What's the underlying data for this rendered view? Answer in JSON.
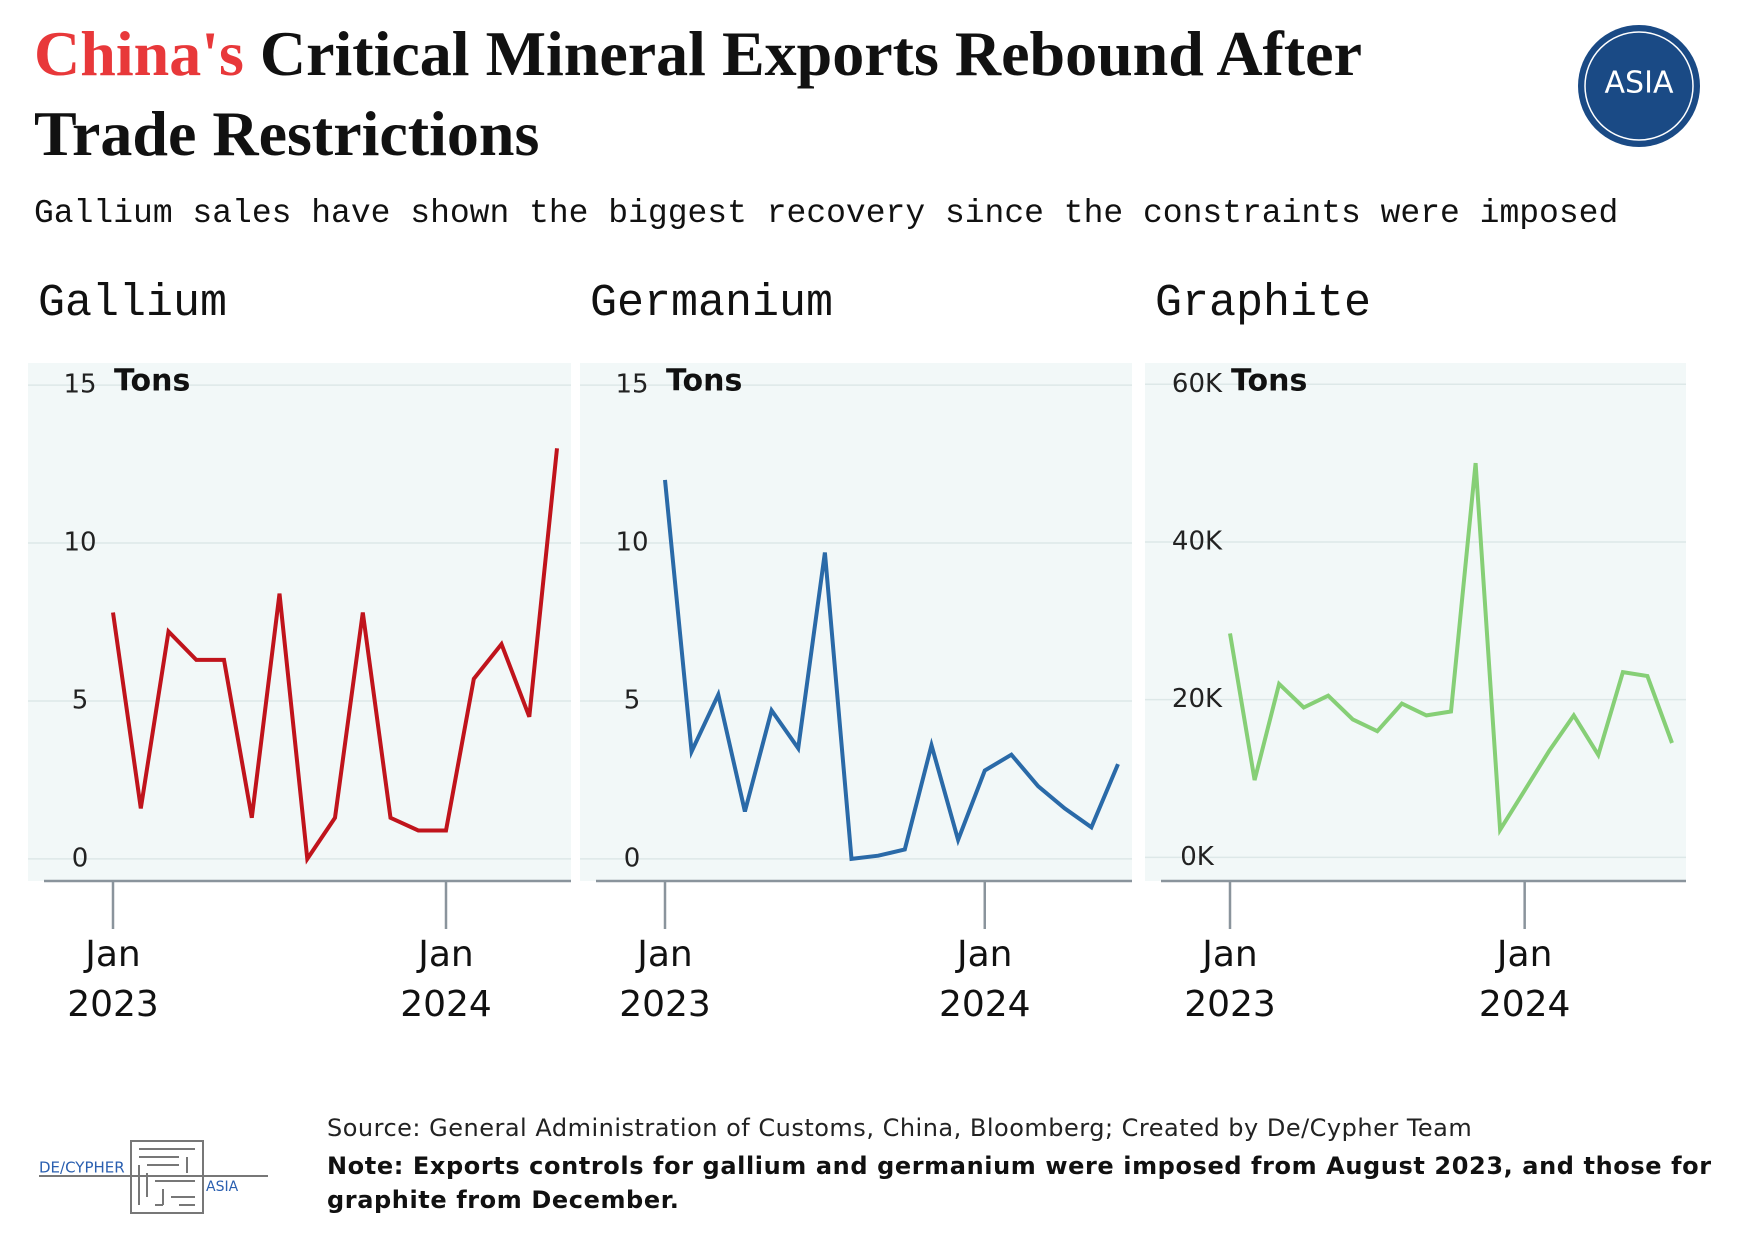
{
  "header": {
    "title_highlight": "China's",
    "title": "Critical Mineral Exports Rebound After Trade Restrictions",
    "subtitle": "Gallium sales have shown the biggest recovery since the constraints were imposed",
    "logo": "ASIA"
  },
  "chart_data": [
    {
      "type": "line",
      "title": "Gallium",
      "ylabel": "Tons",
      "x": [
        "2023-01",
        "2023-02",
        "2023-03",
        "2023-04",
        "2023-05",
        "2023-06",
        "2023-07",
        "2023-08",
        "2023-09",
        "2023-10",
        "2023-11",
        "2023-12",
        "2024-01",
        "2024-02",
        "2024-03",
        "2024-04",
        "2024-05"
      ],
      "xticks": [
        {
          "value": "2023-01",
          "label": "Jan 2023"
        },
        {
          "value": "2024-01",
          "label": "Jan 2024"
        }
      ],
      "series": [
        {
          "name": "Gallium",
          "color": "#c0141c",
          "values": [
            7.8,
            1.6,
            7.2,
            6.3,
            6.3,
            1.3,
            8.4,
            0,
            1.3,
            7.8,
            1.3,
            0.9,
            0.9,
            5.7,
            6.8,
            4.5,
            13.0
          ]
        }
      ],
      "ylim": [
        -0.7,
        15.7
      ],
      "yticks": [
        0,
        5,
        10,
        15
      ],
      "grid": true
    },
    {
      "type": "line",
      "title": "Germanium",
      "ylabel": "Tons",
      "x": [
        "2023-01",
        "2023-02",
        "2023-03",
        "2023-04",
        "2023-05",
        "2023-06",
        "2023-07",
        "2023-08",
        "2023-09",
        "2023-10",
        "2023-11",
        "2023-12",
        "2024-01",
        "2024-02",
        "2024-03",
        "2024-04",
        "2024-05",
        "2024-06"
      ],
      "xticks": [
        {
          "value": "2023-01",
          "label": "Jan 2023"
        },
        {
          "value": "2024-01",
          "label": "Jan 2024"
        }
      ],
      "series": [
        {
          "name": "Germanium",
          "color": "#2a6aa8",
          "values": [
            12.0,
            3.4,
            5.2,
            1.5,
            4.7,
            3.5,
            9.7,
            0,
            0.1,
            0.3,
            3.6,
            0.6,
            2.8,
            3.3,
            2.3,
            1.6,
            1.0,
            3.0
          ]
        }
      ],
      "ylim": [
        -0.7,
        15.7
      ],
      "yticks": [
        0,
        5,
        10,
        15
      ],
      "grid": true
    },
    {
      "type": "line",
      "title": "Graphite",
      "ylabel": "Tons",
      "x": [
        "2023-01",
        "2023-02",
        "2023-03",
        "2023-04",
        "2023-05",
        "2023-06",
        "2023-07",
        "2023-08",
        "2023-09",
        "2023-10",
        "2023-11",
        "2023-12",
        "2024-01",
        "2024-02",
        "2024-03",
        "2024-04",
        "2024-05",
        "2024-06",
        "2024-07"
      ],
      "xticks": [
        {
          "value": "2023-01",
          "label": "Jan 2023"
        },
        {
          "value": "2024-01",
          "label": "Jan 2024"
        }
      ],
      "series": [
        {
          "name": "Graphite",
          "color": "#86cf76",
          "values": [
            28400,
            9800,
            22000,
            19000,
            20500,
            17500,
            16000,
            19500,
            18000,
            18500,
            50000,
            3500,
            8500,
            13500,
            18000,
            13000,
            23500,
            23000,
            14500
          ]
        }
      ],
      "ylim": [
        -3000,
        62700
      ],
      "yticks": [
        {
          "value": 0,
          "label": "0K"
        },
        {
          "value": 20000,
          "label": "20K"
        },
        {
          "value": 40000,
          "label": "40K"
        },
        {
          "value": 60000,
          "label": "60K"
        }
      ],
      "grid": true
    }
  ],
  "footer": {
    "source": "Source: General Administration of Customs, China, Bloomberg; Created by De/Cypher Team",
    "note": "Note: Exports controls for gallium and germanium were imposed from August 2023, and those for graphite from December.",
    "brand": "DE/CYPHER",
    "brand_sub": "ASIA"
  }
}
